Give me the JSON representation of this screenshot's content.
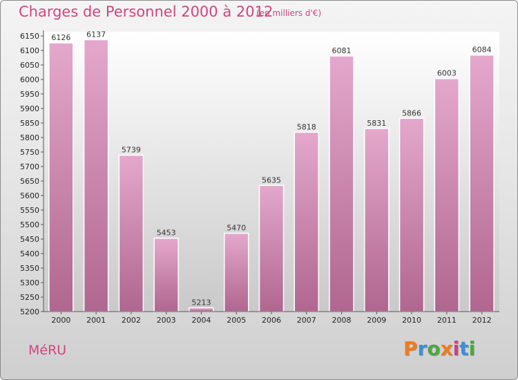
{
  "header": {
    "title": "Charges de Personnel 2000 à 2012",
    "subtitle": "(en milliers d'€)"
  },
  "footer": {
    "commune": "MéRU",
    "logo": "Proxiti",
    "logo_colors": [
      "#f07b1e",
      "#3b8fd6",
      "#4aa83c",
      "#f07b1e",
      "#d23d85",
      "#3b8fd6",
      "#4aa83c"
    ]
  },
  "colors": {
    "accent": "#d0457e",
    "bar_top": "#e4a8cc",
    "bar_bottom": "#b0668f"
  },
  "chart_data": {
    "type": "bar",
    "categories": [
      "2000",
      "2001",
      "2002",
      "2003",
      "2004",
      "2005",
      "2006",
      "2007",
      "2008",
      "2009",
      "2010",
      "2011",
      "2012"
    ],
    "values": [
      6126,
      6137,
      5739,
      5453,
      5213,
      5470,
      5635,
      5818,
      6081,
      5831,
      5866,
      6003,
      6084
    ],
    "ylim": [
      5200,
      6150
    ],
    "ytick_step": 50,
    "grid": false,
    "data_labels": true
  }
}
